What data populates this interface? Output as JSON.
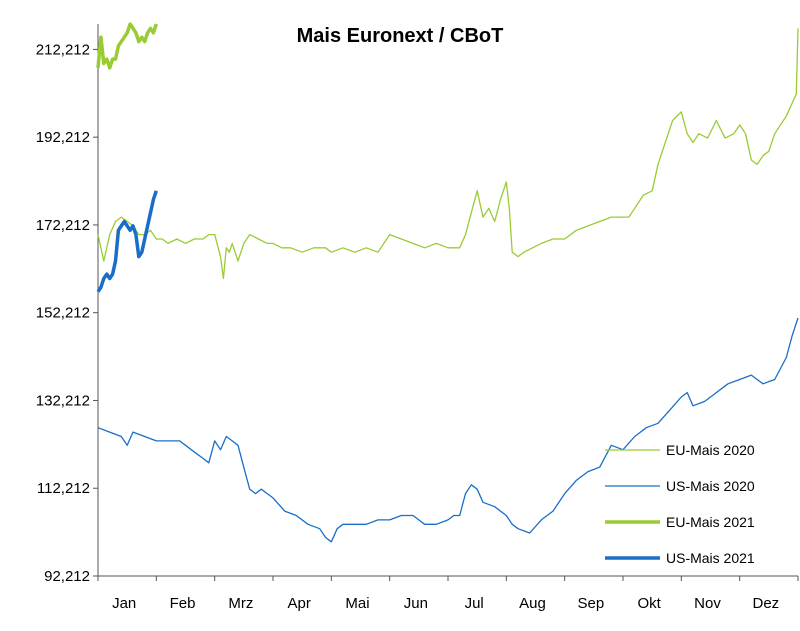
{
  "chart_data": {
    "type": "line",
    "title": "Mais Euronext / CBoT",
    "xlabel": "",
    "ylabel": "",
    "ylim": [
      92.212,
      218
    ],
    "xlim": [
      0,
      12
    ],
    "x_ticks": [
      "Jan",
      "Feb",
      "Mrz",
      "Apr",
      "Mai",
      "Jun",
      "Jul",
      "Aug",
      "Sep",
      "Okt",
      "Nov",
      "Dez"
    ],
    "y_ticks": [
      {
        "value": 92.212,
        "label": "92,212"
      },
      {
        "value": 112.212,
        "label": "112,212"
      },
      {
        "value": 132.212,
        "label": "132,212"
      },
      {
        "value": 152.212,
        "label": "152,212"
      },
      {
        "value": 172.212,
        "label": "172,212"
      },
      {
        "value": 192.212,
        "label": "192,212"
      },
      {
        "value": 212.212,
        "label": "212,212"
      }
    ],
    "grid": false,
    "legend_position": "bottom-right",
    "colors": {
      "eu": "#99cc33",
      "us": "#1a6ec8"
    },
    "series": [
      {
        "name": "EU-Mais 2020",
        "style": "thin",
        "color": "#99cc33",
        "x": [
          0,
          0.1,
          0.2,
          0.3,
          0.4,
          0.5,
          0.6,
          0.7,
          0.8,
          0.9,
          1.0,
          1.1,
          1.2,
          1.35,
          1.5,
          1.65,
          1.8,
          1.9,
          2.0,
          2.1,
          2.15,
          2.2,
          2.25,
          2.3,
          2.4,
          2.5,
          2.6,
          2.75,
          2.9,
          3.0,
          3.15,
          3.3,
          3.5,
          3.7,
          3.9,
          4.0,
          4.2,
          4.4,
          4.6,
          4.8,
          4.9,
          5.0,
          5.2,
          5.4,
          5.6,
          5.8,
          6.0,
          6.2,
          6.3,
          6.4,
          6.5,
          6.6,
          6.7,
          6.8,
          6.9,
          7.0,
          7.05,
          7.1,
          7.2,
          7.3,
          7.45,
          7.6,
          7.8,
          8.0,
          8.2,
          8.4,
          8.6,
          8.8,
          9.0,
          9.1,
          9.2,
          9.35,
          9.5,
          9.6,
          9.7,
          9.85,
          10.0,
          10.1,
          10.2,
          10.3,
          10.45,
          10.6,
          10.75,
          10.9,
          11.0,
          11.1,
          11.2,
          11.3,
          11.4,
          11.5,
          11.6,
          11.7,
          11.8,
          11.9,
          11.97,
          12.0
        ],
        "y": [
          170,
          164,
          170,
          173,
          174,
          173,
          172,
          170,
          170,
          171,
          169,
          169,
          168,
          169,
          168,
          169,
          169,
          170,
          170,
          165,
          160,
          167,
          166,
          168,
          164,
          168,
          170,
          169,
          168,
          168,
          167,
          167,
          166,
          167,
          167,
          166,
          167,
          166,
          167,
          166,
          168,
          170,
          169,
          168,
          167,
          168,
          167,
          167,
          170,
          175,
          180,
          174,
          176,
          173,
          178,
          182,
          176,
          166,
          165,
          166,
          167,
          168,
          169,
          169,
          171,
          172,
          173,
          174,
          174,
          174,
          176,
          179,
          180,
          186,
          190,
          196,
          198,
          193,
          191,
          193,
          192,
          196,
          192,
          193,
          195,
          193,
          187,
          186,
          188,
          189,
          193,
          195,
          197,
          200,
          202,
          217
        ]
      },
      {
        "name": "US-Mais 2020",
        "style": "thin",
        "color": "#1a6ec8",
        "x": [
          0,
          0.2,
          0.4,
          0.5,
          0.6,
          0.8,
          1.0,
          1.2,
          1.4,
          1.5,
          1.6,
          1.8,
          1.9,
          2.0,
          2.1,
          2.2,
          2.3,
          2.4,
          2.5,
          2.6,
          2.7,
          2.8,
          2.9,
          3.0,
          3.2,
          3.4,
          3.6,
          3.8,
          3.9,
          4.0,
          4.1,
          4.2,
          4.4,
          4.6,
          4.8,
          5.0,
          5.2,
          5.4,
          5.5,
          5.6,
          5.8,
          6.0,
          6.1,
          6.2,
          6.3,
          6.4,
          6.5,
          6.6,
          6.8,
          7.0,
          7.1,
          7.2,
          7.4,
          7.6,
          7.8,
          8.0,
          8.2,
          8.4,
          8.6,
          8.8,
          9.0,
          9.2,
          9.4,
          9.6,
          9.8,
          10.0,
          10.1,
          10.2,
          10.4,
          10.6,
          10.8,
          11.0,
          11.2,
          11.4,
          11.6,
          11.8,
          11.9,
          12.0
        ],
        "y": [
          126,
          125,
          124,
          122,
          125,
          124,
          123,
          123,
          123,
          122,
          121,
          119,
          118,
          123,
          121,
          124,
          123,
          122,
          117,
          112,
          111,
          112,
          111,
          110,
          107,
          106,
          104,
          103,
          101,
          100,
          103,
          104,
          104,
          104,
          105,
          105,
          106,
          106,
          105,
          104,
          104,
          105,
          106,
          106,
          111,
          113,
          112,
          109,
          108,
          106,
          104,
          103,
          102,
          105,
          107,
          111,
          114,
          116,
          117,
          122,
          121,
          124,
          126,
          127,
          130,
          133,
          134,
          131,
          132,
          134,
          136,
          137,
          138,
          136,
          137,
          142,
          147,
          151
        ]
      },
      {
        "name": "EU-Mais 2021",
        "style": "thick",
        "color": "#99cc33",
        "x": [
          0,
          0.05,
          0.1,
          0.15,
          0.2,
          0.25,
          0.3,
          0.35,
          0.4,
          0.45,
          0.5,
          0.55,
          0.6,
          0.65,
          0.7,
          0.75,
          0.8,
          0.85,
          0.9,
          0.95,
          1.0
        ],
        "y": [
          208,
          215,
          209,
          210,
          208,
          210,
          210,
          213,
          214,
          215,
          216,
          218,
          217,
          216,
          214,
          215,
          214,
          216,
          217,
          216,
          218
        ]
      },
      {
        "name": "US-Mais 2021",
        "style": "thick",
        "color": "#1a6ec8",
        "x": [
          0,
          0.05,
          0.1,
          0.15,
          0.2,
          0.25,
          0.3,
          0.35,
          0.4,
          0.45,
          0.5,
          0.55,
          0.6,
          0.65,
          0.7,
          0.75,
          0.8,
          0.85,
          0.9,
          0.95,
          1.0
        ],
        "y": [
          157,
          158,
          160,
          161,
          160,
          161,
          164,
          171,
          172,
          173,
          172,
          171,
          172,
          170,
          165,
          166,
          169,
          172,
          175,
          178,
          180
        ]
      }
    ]
  }
}
